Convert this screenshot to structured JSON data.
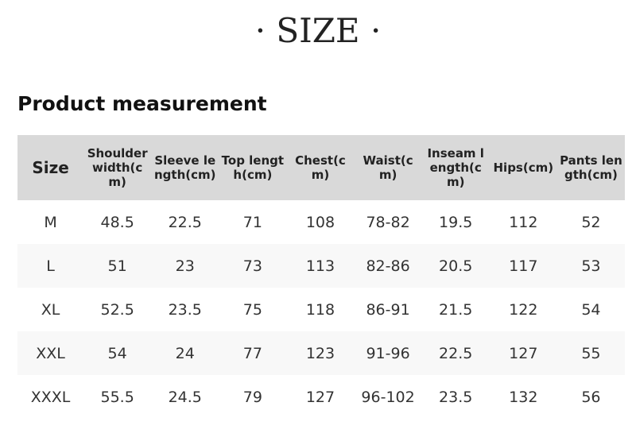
{
  "title": "· SIZE ·",
  "subtitle": "Product measurement",
  "headers": [
    "Size",
    "Shoulder width(cm)",
    "Sleeve length(cm)",
    "Top length(cm)",
    "Chest(cm)",
    "Waist(cm)",
    "Inseam length(cm)",
    "Hips(cm)",
    "Pants length(cm)"
  ],
  "rows": [
    [
      "M",
      "48.5",
      "22.5",
      "71",
      "108",
      "78-82",
      "19.5",
      "112",
      "52"
    ],
    [
      "L",
      "51",
      "23",
      "73",
      "113",
      "82-86",
      "20.5",
      "117",
      "53"
    ],
    [
      "XL",
      "52.5",
      "23.5",
      "75",
      "118",
      "86-91",
      "21.5",
      "122",
      "54"
    ],
    [
      "XXL",
      "54",
      "24",
      "77",
      "123",
      "91-96",
      "22.5",
      "127",
      "55"
    ],
    [
      "XXXL",
      "55.5",
      "24.5",
      "79",
      "127",
      "96-102",
      "23.5",
      "132",
      "56"
    ]
  ]
}
